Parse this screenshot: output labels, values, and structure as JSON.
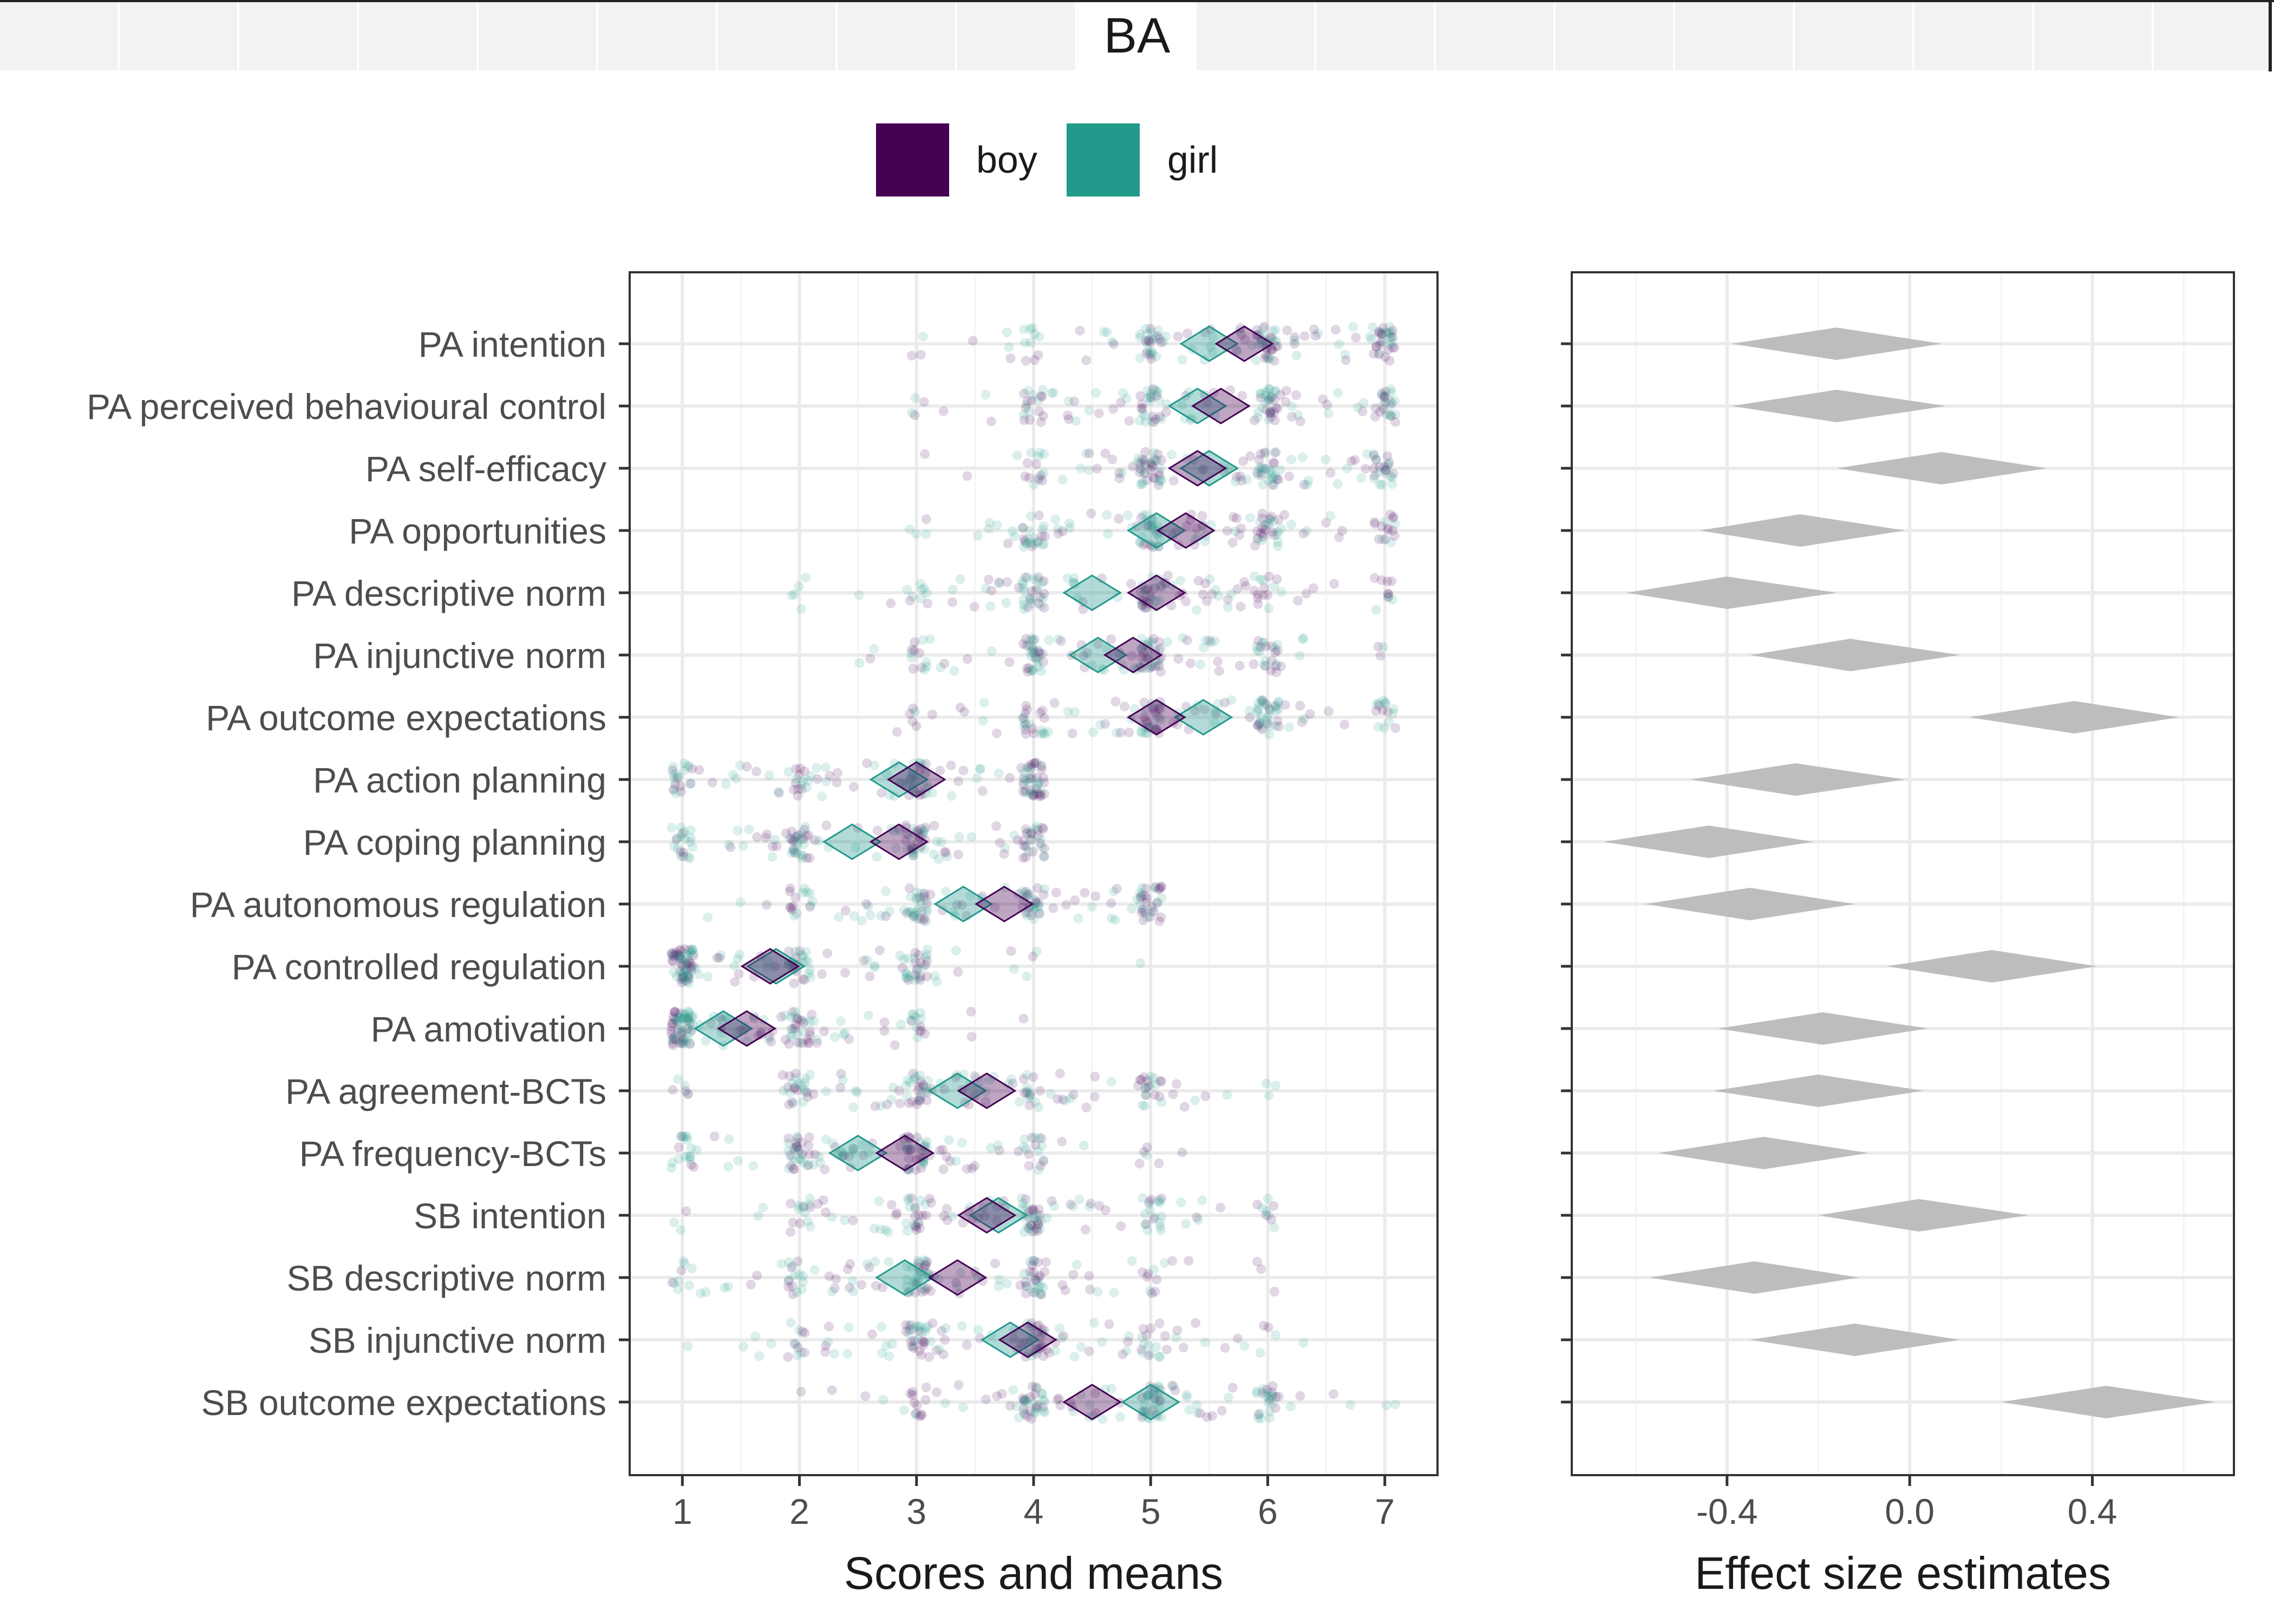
{
  "facet": {
    "title": "BA"
  },
  "legend": {
    "items": [
      {
        "label": "boy",
        "color": "#440154"
      },
      {
        "label": "girl",
        "color": "#21998b"
      }
    ]
  },
  "chart_data": [
    {
      "type": "scatter",
      "xlabel": "Scores and means",
      "ylabel": "",
      "xlim": [
        0.55,
        7.45
      ],
      "xticks": [
        1,
        2,
        3,
        4,
        5,
        6,
        7
      ],
      "grid": true,
      "categories": [
        "PA intention",
        "PA perceived behavioural control",
        "PA self-efficacy",
        "PA opportunities",
        "PA descriptive norm",
        "PA injunctive norm",
        "PA outcome expectations",
        "PA action planning",
        "PA coping planning",
        "PA autonomous regulation",
        "PA controlled regulation",
        "PA amotivation",
        "PA agreement-BCTs",
        "PA frequency-BCTs",
        "SB intention",
        "SB descriptive norm",
        "SB injunctive norm",
        "SB outcome expectations"
      ],
      "scale_max": [
        7,
        7,
        7,
        7,
        7,
        7,
        7,
        4,
        4,
        5,
        5,
        5,
        6,
        6,
        7,
        7,
        7,
        7
      ],
      "series": [
        {
          "name": "boy",
          "means": [
            5.8,
            5.6,
            5.4,
            5.3,
            5.05,
            4.85,
            5.05,
            3.0,
            2.85,
            3.75,
            1.75,
            1.55,
            3.6,
            2.9,
            3.6,
            3.35,
            3.95,
            4.5
          ]
        },
        {
          "name": "girl",
          "means": [
            5.5,
            5.4,
            5.5,
            5.05,
            4.5,
            4.55,
            5.45,
            2.85,
            2.45,
            3.4,
            1.8,
            1.35,
            3.35,
            2.5,
            3.7,
            2.9,
            3.8,
            5.0
          ]
        }
      ]
    },
    {
      "type": "scatter",
      "xlabel": "Effect size estimates",
      "ylabel": "",
      "xlim": [
        -0.74,
        0.71
      ],
      "xticks": [
        -0.4,
        0.0,
        0.4
      ],
      "xtick_labels": [
        "-0.4",
        "0.0",
        "0.4"
      ],
      "grid": true,
      "estimates": [
        {
          "low": -0.39,
          "point": -0.16,
          "high": 0.07
        },
        {
          "low": -0.39,
          "point": -0.16,
          "high": 0.08
        },
        {
          "low": -0.16,
          "point": 0.07,
          "high": 0.3
        },
        {
          "low": -0.46,
          "point": -0.24,
          "high": -0.01
        },
        {
          "low": -0.62,
          "point": -0.4,
          "high": -0.16
        },
        {
          "low": -0.35,
          "point": -0.13,
          "high": 0.11
        },
        {
          "low": 0.13,
          "point": 0.36,
          "high": 0.59
        },
        {
          "low": -0.48,
          "point": -0.25,
          "high": -0.01
        },
        {
          "low": -0.67,
          "point": -0.44,
          "high": -0.21
        },
        {
          "low": -0.58,
          "point": -0.35,
          "high": -0.12
        },
        {
          "low": -0.05,
          "point": 0.18,
          "high": 0.41
        },
        {
          "low": -0.42,
          "point": -0.19,
          "high": 0.04
        },
        {
          "low": -0.43,
          "point": -0.2,
          "high": 0.03
        },
        {
          "low": -0.55,
          "point": -0.32,
          "high": -0.09
        },
        {
          "low": -0.2,
          "point": 0.02,
          "high": 0.26
        },
        {
          "low": -0.57,
          "point": -0.34,
          "high": -0.11
        },
        {
          "low": -0.35,
          "point": -0.12,
          "high": 0.11
        },
        {
          "low": 0.2,
          "point": 0.43,
          "high": 0.67
        }
      ]
    }
  ]
}
